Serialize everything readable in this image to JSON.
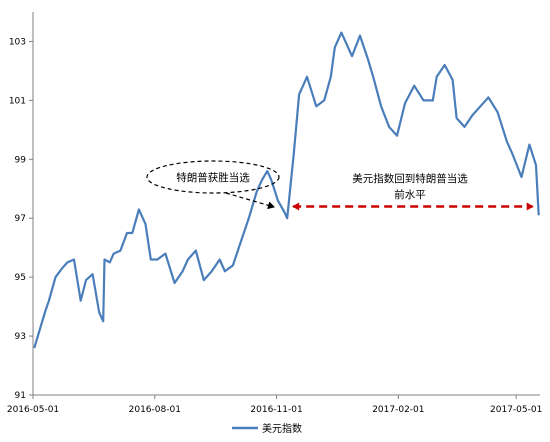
{
  "chart_data": {
    "type": "line",
    "title": "",
    "xlabel": "",
    "ylabel": "",
    "ylim": [
      91,
      104
    ],
    "y_ticks": [
      "91",
      "93",
      "95",
      "97",
      "99",
      "101",
      "103"
    ],
    "x_ticks": [
      "2016-05-01",
      "2016-08-01",
      "2016-11-01",
      "2017-02-01",
      "2017-05-01"
    ],
    "x_range": [
      "2016-05-01",
      "2017-05-19"
    ],
    "grid": false,
    "legend_position": "bottom-center",
    "series": [
      {
        "name": "美元指数",
        "color": "#4a7ebb",
        "x": [
          "2016-05-02",
          "2016-05-06",
          "2016-05-10",
          "2016-05-13",
          "2016-05-18",
          "2016-05-23",
          "2016-05-27",
          "2016-06-01",
          "2016-06-06",
          "2016-06-10",
          "2016-06-15",
          "2016-06-20",
          "2016-06-23",
          "2016-06-24",
          "2016-06-28",
          "2016-07-01",
          "2016-07-06",
          "2016-07-11",
          "2016-07-15",
          "2016-07-20",
          "2016-07-25",
          "2016-07-29",
          "2016-08-03",
          "2016-08-09",
          "2016-08-16",
          "2016-08-22",
          "2016-08-26",
          "2016-09-01",
          "2016-09-07",
          "2016-09-13",
          "2016-09-19",
          "2016-09-23",
          "2016-09-29",
          "2016-10-05",
          "2016-10-11",
          "2016-10-17",
          "2016-10-21",
          "2016-10-25",
          "2016-10-28",
          "2016-11-02",
          "2016-11-07",
          "2016-11-09",
          "2016-11-14",
          "2016-11-18",
          "2016-11-24",
          "2016-12-01",
          "2016-12-07",
          "2016-12-12",
          "2016-12-15",
          "2016-12-20",
          "2016-12-28",
          "2017-01-03",
          "2017-01-09",
          "2017-01-13",
          "2017-01-19",
          "2017-01-25",
          "2017-01-31",
          "2017-02-06",
          "2017-02-13",
          "2017-02-20",
          "2017-02-27",
          "2017-03-02",
          "2017-03-08",
          "2017-03-14",
          "2017-03-17",
          "2017-03-23",
          "2017-03-29",
          "2017-04-04",
          "2017-04-10",
          "2017-04-17",
          "2017-04-24",
          "2017-04-28",
          "2017-05-05",
          "2017-05-11",
          "2017-05-16",
          "2017-05-18"
        ],
        "values": [
          92.6,
          93.2,
          93.8,
          94.2,
          95.0,
          95.3,
          95.5,
          95.6,
          94.2,
          94.9,
          95.1,
          93.8,
          93.5,
          95.6,
          95.5,
          95.8,
          95.9,
          96.5,
          96.5,
          97.3,
          96.8,
          95.6,
          95.6,
          95.8,
          94.8,
          95.2,
          95.6,
          95.9,
          94.9,
          95.2,
          95.6,
          95.2,
          95.4,
          96.2,
          97.0,
          97.9,
          98.3,
          98.6,
          98.3,
          97.6,
          97.2,
          97.0,
          99.2,
          101.2,
          101.8,
          100.8,
          101.0,
          101.8,
          102.8,
          103.3,
          102.5,
          103.2,
          102.4,
          101.8,
          100.8,
          100.1,
          99.8,
          100.9,
          101.5,
          101.0,
          101.0,
          101.8,
          102.2,
          101.7,
          100.4,
          100.1,
          100.5,
          100.8,
          101.1,
          100.6,
          99.6,
          99.2,
          98.4,
          99.5,
          98.8,
          97.1
        ]
      }
    ],
    "annotations": [
      {
        "text": "特朗普获胜当选",
        "date": "2016-11-09",
        "y": 98.3
      },
      {
        "text_line1": "美元指数回到特朗普当选",
        "text_line2": "前水平",
        "from_date": "2016-11-09",
        "to_date": "2017-05-18",
        "y": 97.4
      }
    ]
  },
  "colors": {
    "line": "#4a7ebb",
    "arrow": "#cc0000",
    "axis": "#808080"
  }
}
